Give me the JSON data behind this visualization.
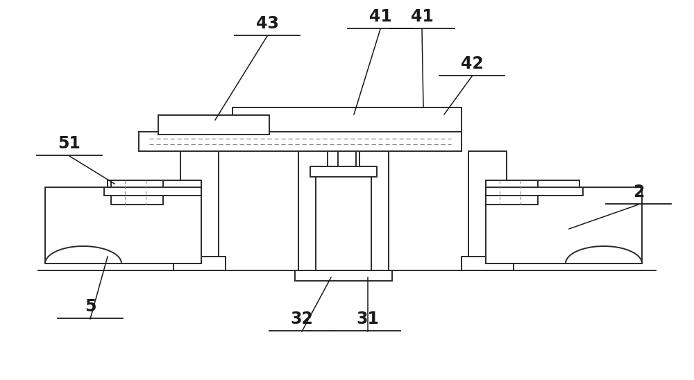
{
  "bg_color": "#ffffff",
  "line_color": "#2a2a2a",
  "dashed_color": "#888888",
  "label_color": "#1a1a1a",
  "label_fontsize": 17,
  "figsize": [
    10.0,
    5.48
  ],
  "dpi": 100,
  "lw": 1.4
}
